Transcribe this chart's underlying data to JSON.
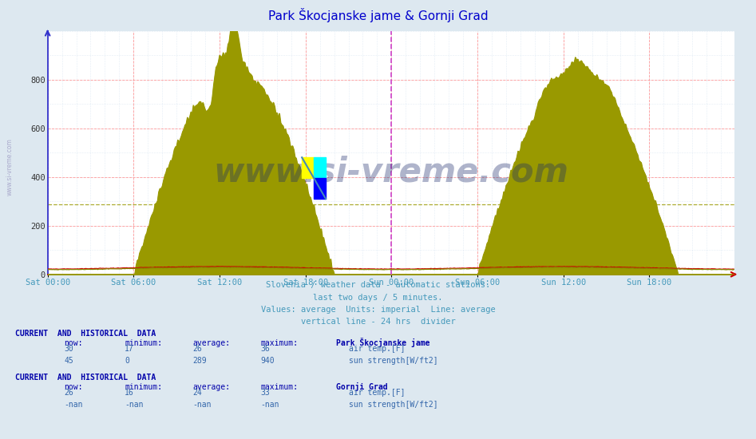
{
  "title": "Park Škocjanske jame & Gornji Grad",
  "title_color": "#0000cc",
  "bg_color": "#dde8f0",
  "plot_bg_color": "#ffffff",
  "grid_color_major": "#ff9999",
  "grid_color_minor": "#ccddee",
  "ylim": [
    0,
    1000
  ],
  "yticks": [
    0,
    200,
    400,
    600,
    800
  ],
  "xlabel_color": "#4499bb",
  "xtick_labels": [
    "Sat 00:00",
    "Sat 06:00",
    "Sat 12:00",
    "Sat 18:00",
    "Sun 00:00",
    "Sun 06:00",
    "Sun 12:00",
    "Sun 18:00"
  ],
  "subtitle_lines": [
    "Slovenia / weather data - automatic stations.",
    "last two days / 5 minutes.",
    "Values: average  Units: imperial  Line: average",
    "vertical line - 24 hrs  divider"
  ],
  "subtitle_color": "#4499bb",
  "sun_color_park": "#999900",
  "temp_color_park": "#cc0000",
  "temp_color_gornji": "#888800",
  "sun_color_gornji": "#ffaaaa",
  "avg_line_color": "#999900",
  "avg_line_value": 289,
  "divider_color": "#cc44cc",
  "watermark_color": "#1a2a6a",
  "footer_color": "#0000aa",
  "n_points": 576
}
